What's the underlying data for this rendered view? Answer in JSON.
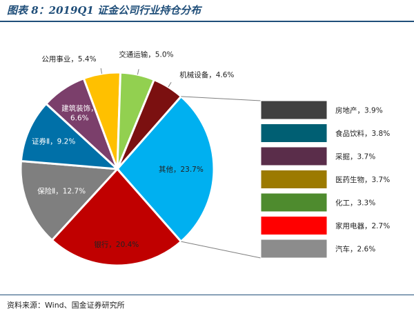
{
  "title": "图表 8：2019Q1 证金公司行业持仓分布",
  "source": "资料来源：Wind、国金证券研究所",
  "chart_data": {
    "type": "pie",
    "subtype": "pie-of-pie",
    "main_slices": [
      {
        "label": "其他",
        "value": 23.7,
        "label_text": "其他，23.7%",
        "color": "#00b0f0"
      },
      {
        "label": "银行",
        "value": 20.4,
        "label_text": "银行，20.4%",
        "color": "#c00000"
      },
      {
        "label": "保险Ⅱ",
        "value": 12.7,
        "label_text": "保险Ⅱ，12.7%",
        "color": "#7f7f7f"
      },
      {
        "label": "证券Ⅱ",
        "value": 9.2,
        "label_text": "证券Ⅱ，9.2%",
        "color": "#0070a8"
      },
      {
        "label": "建筑装饰",
        "value": 6.6,
        "label_text": "建筑装饰，6.6%",
        "color": "#7b3f6b"
      },
      {
        "label": "公用事业",
        "value": 5.4,
        "label_text": "公用事业，5.4%",
        "color": "#ffc000"
      },
      {
        "label": "交通运输",
        "value": 5.0,
        "label_text": "交通运输，5.0%",
        "color": "#92d050"
      },
      {
        "label": "机械设备",
        "value": 4.6,
        "label_text": "机械设备，4.6%",
        "color": "#7b1010"
      }
    ],
    "breakdown_bars": [
      {
        "label": "房地产",
        "value": 3.9,
        "label_text": "房地产，3.9%",
        "color": "#404040"
      },
      {
        "label": "食品饮料",
        "value": 3.8,
        "label_text": "食品饮料，3.8%",
        "color": "#005f73"
      },
      {
        "label": "采掘",
        "value": 3.7,
        "label_text": "采掘，3.7%",
        "color": "#5a2d4a"
      },
      {
        "label": "医药生物",
        "value": 3.7,
        "label_text": "医药生物，3.7%",
        "color": "#9c7a00"
      },
      {
        "label": "化工",
        "value": 3.3,
        "label_text": "化工，3.3%",
        "color": "#4e8b2e"
      },
      {
        "label": "家用电器",
        "value": 2.7,
        "label_text": "家用电器，2.7%",
        "color": "#ff0000"
      },
      {
        "label": "汽车",
        "value": 2.6,
        "label_text": "汽车，2.6%",
        "color": "#8c8c8c"
      }
    ]
  }
}
